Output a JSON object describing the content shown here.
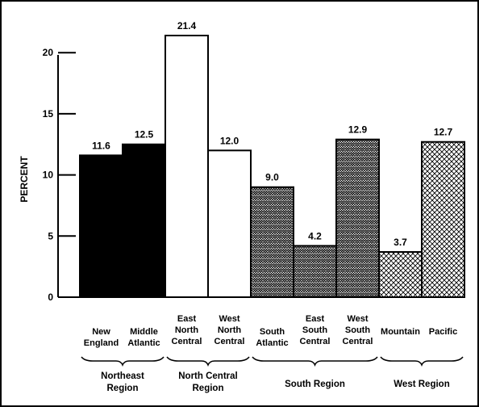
{
  "chart_data": {
    "type": "bar",
    "title": "",
    "xlabel": "",
    "ylabel": "PERCENT",
    "ylim": [
      0,
      21.4
    ],
    "yticks": [
      0,
      5,
      10,
      15,
      20
    ],
    "grid": false,
    "legend": "none",
    "categories": [
      [
        "New",
        "England"
      ],
      [
        "Middle",
        "Atlantic"
      ],
      [
        "East",
        "North",
        "Central"
      ],
      [
        "West",
        "North",
        "Central"
      ],
      [
        "South",
        "Atlantic"
      ],
      [
        "East",
        "South",
        "Central"
      ],
      [
        "West",
        "South",
        "Central"
      ],
      [
        "Mountain"
      ],
      [
        "Pacific"
      ]
    ],
    "values": [
      11.6,
      12.5,
      21.4,
      12.0,
      9.0,
      4.2,
      12.9,
      3.7,
      12.7
    ],
    "value_labels": [
      "11.6",
      "12.5",
      "21.4",
      "12.0",
      "9.0",
      "4.2",
      "12.9",
      "3.7",
      "12.7"
    ],
    "groups": [
      {
        "label": [
          "Northeast",
          "Region"
        ],
        "members": [
          0,
          1
        ],
        "fill": "solid"
      },
      {
        "label": [
          "North Central",
          "Region"
        ],
        "members": [
          2,
          3
        ],
        "fill": "white"
      },
      {
        "label": [
          "South Region"
        ],
        "members": [
          4,
          5,
          6
        ],
        "fill": "zigzag"
      },
      {
        "label": [
          "West Region"
        ],
        "members": [
          7,
          8
        ],
        "fill": "crosshatch"
      }
    ],
    "colors": {
      "ink": "#000000",
      "paper": "#ffffff"
    }
  }
}
